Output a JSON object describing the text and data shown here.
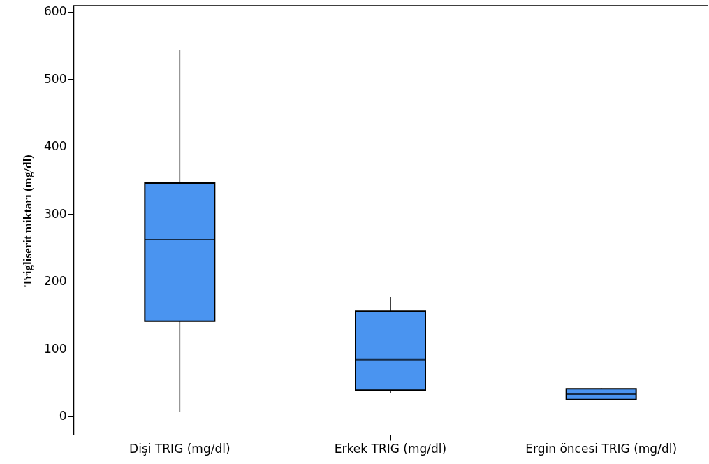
{
  "chart_data": {
    "type": "box",
    "ylabel": "Trigliserit miktarı (mg/dl)",
    "categories": [
      "Dişi TRIG (mg/dl)",
      "Erkek TRIG (mg/dl)",
      "Ergin öncesi TRIG (mg/dl)"
    ],
    "color": "#4a94f0",
    "ylim": [
      -27,
      609
    ],
    "yticks": [
      0,
      100,
      200,
      300,
      400,
      500,
      600
    ],
    "grid": false,
    "boxes": [
      {
        "low": 7,
        "q1": 141,
        "median": 262,
        "q3": 346,
        "high": 543
      },
      {
        "low": 35,
        "q1": 39,
        "median": 84,
        "q3": 156,
        "high": 177
      },
      {
        "low": 24,
        "q1": 25,
        "median": 33,
        "q3": 41,
        "high": 42
      }
    ]
  }
}
